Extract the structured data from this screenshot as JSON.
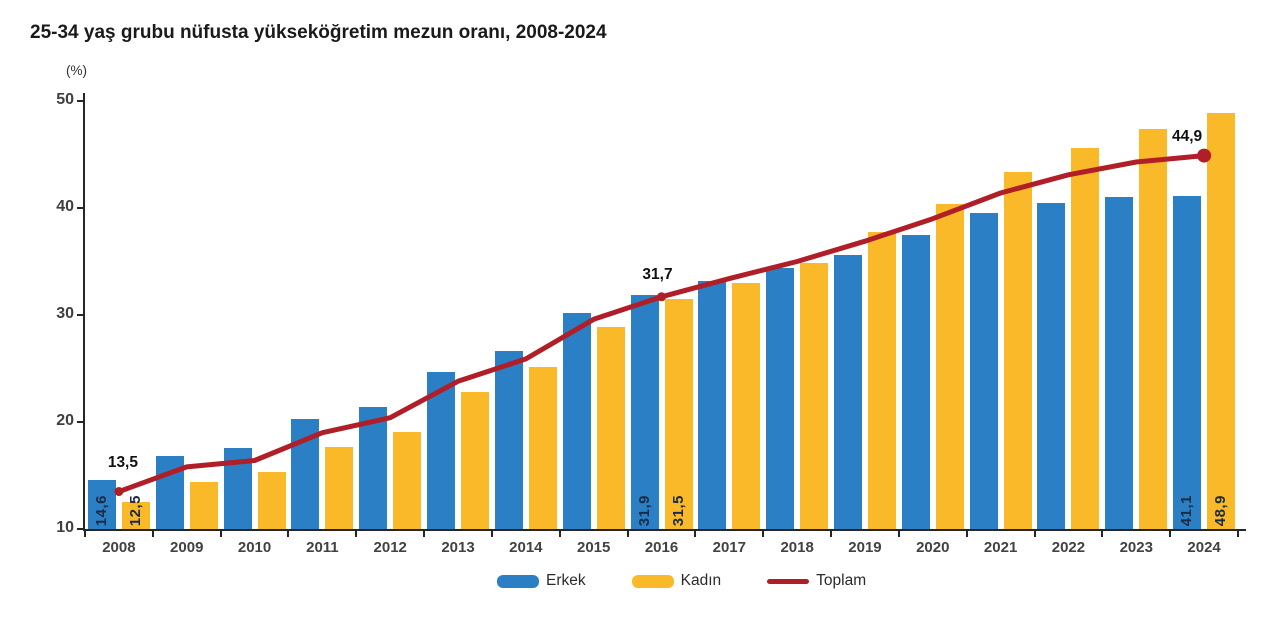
{
  "title": "25-34 yaş grubu nüfusta yükseköğretim mezun oranı, 2008-2024",
  "y_axis": {
    "unit": "(%)",
    "tick_labels": [
      "50",
      "40",
      "30",
      "20",
      "10"
    ],
    "min": 10,
    "max": 50,
    "step": 10
  },
  "x_axis": {
    "tick_labels": [
      "2008",
      "2009",
      "2010",
      "2011",
      "2012",
      "2013",
      "2014",
      "2015",
      "2016",
      "2017",
      "2018",
      "2019",
      "2020",
      "2021",
      "2022",
      "2023",
      "2024"
    ]
  },
  "legend": {
    "items": [
      {
        "label": "Erkek",
        "swatch": "bar",
        "color": "#2b7fc4"
      },
      {
        "label": "Kadın",
        "swatch": "bar",
        "color": "#f9b929"
      },
      {
        "label": "Toplam",
        "swatch": "line",
        "color": "#b01e28"
      }
    ]
  },
  "colors": {
    "erkek_bar": "#2b7fc4",
    "kadin_bar": "#f9b929",
    "toplam_line": "#b01e28",
    "axis": "#262626",
    "bar_value_label": "#1c2b45"
  },
  "chart_data": {
    "type": "bar+line",
    "title": "25-34 yaş grubu nüfusta yükseköğretim mezun oranı, 2008-2024",
    "ylabel": "(%)",
    "ylim": [
      10,
      50
    ],
    "grid": false,
    "legend_position": "bottom",
    "categories": [
      "2008",
      "2009",
      "2010",
      "2011",
      "2012",
      "2013",
      "2014",
      "2015",
      "2016",
      "2017",
      "2018",
      "2019",
      "2020",
      "2021",
      "2022",
      "2023",
      "2024"
    ],
    "series": [
      {
        "name": "Erkek",
        "type": "bar",
        "color": "#2b7fc4",
        "values": [
          14.6,
          16.8,
          17.6,
          20.3,
          21.4,
          24.7,
          26.6,
          30.2,
          31.9,
          33.2,
          34.4,
          35.6,
          37.5,
          39.5,
          40.5,
          41.0,
          41.1
        ]
      },
      {
        "name": "Kadın",
        "type": "bar",
        "color": "#f9b929",
        "values": [
          12.5,
          14.4,
          15.3,
          17.7,
          19.1,
          22.8,
          25.1,
          28.9,
          31.5,
          33.0,
          34.9,
          37.8,
          40.4,
          43.4,
          45.6,
          47.4,
          48.9
        ]
      },
      {
        "name": "Toplam",
        "type": "line",
        "color": "#b01e28",
        "values": [
          13.5,
          15.8,
          16.4,
          19.0,
          20.4,
          23.8,
          25.9,
          29.6,
          31.7,
          33.4,
          35.0,
          36.9,
          39.0,
          41.4,
          43.1,
          44.3,
          44.9
        ]
      }
    ],
    "annotations": {
      "line_point_labels": [
        {
          "year": "2008",
          "series": "Toplam",
          "text": "13,5"
        },
        {
          "year": "2016",
          "series": "Toplam",
          "text": "31,7"
        },
        {
          "year": "2024",
          "series": "Toplam",
          "text": "44,9"
        }
      ],
      "bar_value_labels": [
        {
          "year": "2008",
          "series": "Erkek",
          "text": "14,6"
        },
        {
          "year": "2008",
          "series": "Kadın",
          "text": "12,5"
        },
        {
          "year": "2016",
          "series": "Erkek",
          "text": "31,9"
        },
        {
          "year": "2016",
          "series": "Kadın",
          "text": "31,5"
        },
        {
          "year": "2024",
          "series": "Erkek",
          "text": "41,1"
        },
        {
          "year": "2024",
          "series": "Kadın",
          "text": "48,9"
        }
      ]
    }
  }
}
